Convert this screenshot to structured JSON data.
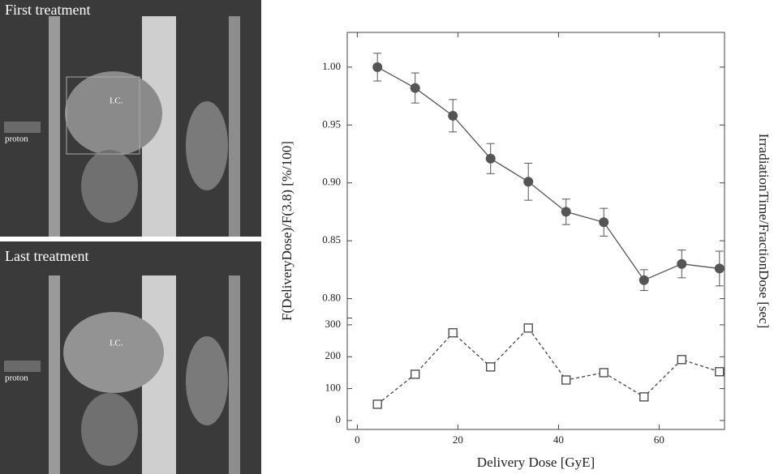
{
  "image_panels": [
    {
      "title": "First treatment",
      "arrow_label": "proton",
      "marker_label": "I.C."
    },
    {
      "title": "Last treatment",
      "arrow_label": "proton",
      "marker_label": "I.C."
    }
  ],
  "chart_data": {
    "type": "line",
    "x_label": "Delivery Dose [GyE]",
    "y_label": "F(DeliveryDose)/F(3.8) [%/100]",
    "y2_label": "IrradiationTime/FractionDose [sec]",
    "xlim": [
      -2,
      73
    ],
    "xticks": [
      0,
      20,
      40,
      60
    ],
    "ylim": [
      0.785,
      1.03
    ],
    "yticks": [
      {
        "value": 0.8,
        "label": "0.80"
      },
      0.85,
      {
        "value": 0.9,
        "label": "0.90"
      },
      0.95,
      {
        "value": 1,
        "label": "1.00"
      }
    ],
    "y2lim": [
      -28,
      315
    ],
    "y2ticks": [
      0,
      100,
      200,
      300
    ],
    "series": [
      {
        "x": [
          4,
          11.5,
          19,
          26.5,
          34,
          41.5,
          49,
          57,
          64.5,
          72
        ],
        "values": [
          1.0,
          0.982,
          0.958,
          0.921,
          0.901,
          0.875,
          0.866,
          0.816,
          0.83,
          0.826
        ],
        "errors": [
          0.012,
          0.013,
          0.014,
          0.013,
          0.016,
          0.011,
          0.012,
          0.009,
          0.012,
          0.015
        ],
        "color": "#555555",
        "marker": "circle"
      },
      {
        "x": [
          4,
          11.5,
          19,
          26.5,
          34,
          41.5,
          49,
          57,
          64.5,
          72
        ],
        "values": [
          51,
          145,
          275,
          168,
          290,
          127,
          150,
          74,
          191,
          153
        ],
        "color": "#444444",
        "marker": "square",
        "axis": "y2"
      }
    ]
  }
}
